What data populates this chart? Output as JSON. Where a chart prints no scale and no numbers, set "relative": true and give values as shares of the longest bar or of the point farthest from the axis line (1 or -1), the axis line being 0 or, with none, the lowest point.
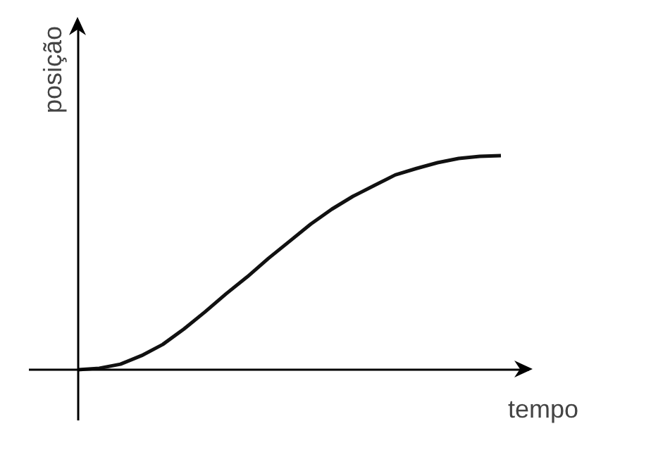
{
  "chart_data": {
    "type": "line",
    "relative": true,
    "xlabel": "tempo",
    "ylabel": "posição",
    "color": "#111111",
    "categories": [
      null,
      null,
      null,
      null,
      null,
      null,
      null,
      null,
      null,
      null,
      null,
      null,
      null,
      null,
      null,
      null,
      null,
      null,
      null,
      null,
      null
    ],
    "values": [
      0,
      0.007,
      0.026,
      0.066,
      0.118,
      0.19,
      0.27,
      0.355,
      0.434,
      0.52,
      0.6,
      0.68,
      0.75,
      0.81,
      0.86,
      0.91,
      0.94,
      0.967,
      0.987,
      0.997,
      1
    ]
  }
}
